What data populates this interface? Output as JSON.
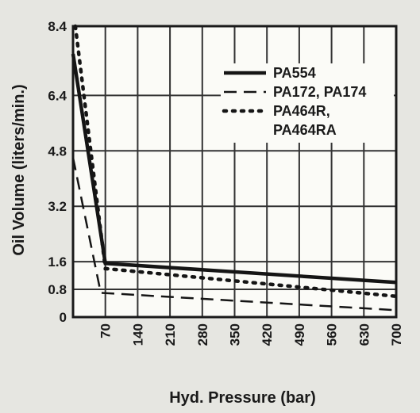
{
  "chart_data": {
    "type": "line",
    "title": "",
    "xlabel": "Hyd. Pressure (bar)",
    "ylabel": "Oil Volume (liters/min.)",
    "x_ticks": [
      "70",
      "140",
      "210",
      "280",
      "350",
      "420",
      "490",
      "560",
      "630",
      "700"
    ],
    "y_ticks": [
      "8.4",
      "6.4",
      "4.8",
      "3.2",
      "1.6",
      "0.8",
      "0"
    ],
    "y_tick_values": [
      8.4,
      6.4,
      4.8,
      3.2,
      1.6,
      0.8,
      0
    ],
    "xlim": [
      0,
      700
    ],
    "ylim": [
      0,
      8.4
    ],
    "grid": true,
    "legend_position": "top-right",
    "series": [
      {
        "name": "PA554",
        "style": "solid",
        "points": [
          [
            0,
            7.6
          ],
          [
            70,
            1.55
          ],
          [
            700,
            1.0
          ]
        ]
      },
      {
        "name": "PA172, PA174",
        "style": "dashed",
        "points": [
          [
            0,
            4.6
          ],
          [
            60,
            0.7
          ],
          [
            700,
            0.2
          ]
        ]
      },
      {
        "name_lines": [
          "PA464R,",
          "PA464RA"
        ],
        "style": "dotted",
        "points": [
          [
            5,
            8.4
          ],
          [
            70,
            1.4
          ],
          [
            700,
            0.6
          ]
        ]
      }
    ]
  }
}
